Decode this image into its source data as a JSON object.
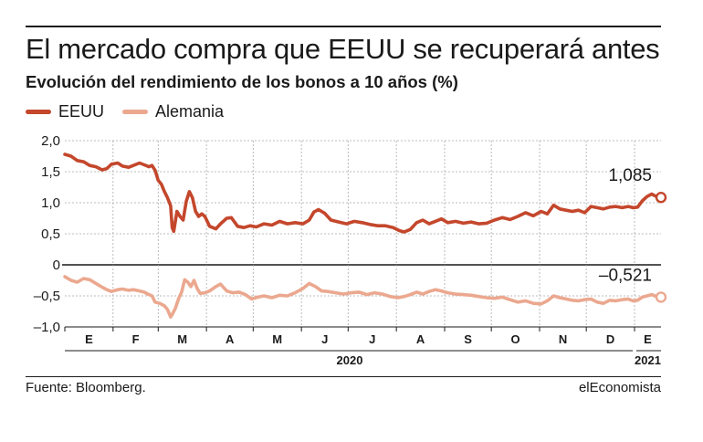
{
  "header": {
    "title": "El mercado compra que EEUU se recuperará antes",
    "subtitle": "Evolución del rendimiento de los bonos a 10 años (%)"
  },
  "colors": {
    "us": "#c4472c",
    "de": "#eba88f",
    "grid": "#a9a9a9",
    "axis": "#1a1a1a"
  },
  "footer": {
    "source": "Fuente: Bloomberg.",
    "brand": "elEconomista"
  },
  "chart_data": {
    "type": "line",
    "title": "Evolución del rendimiento de los bonos a 10 años (%)",
    "ylim": [
      -1.0,
      2.0
    ],
    "y_ticks": [
      2.0,
      1.5,
      1.0,
      0.5,
      0,
      -0.5,
      -1.0
    ],
    "y_tick_labels": [
      "2,0",
      "1,5",
      "1,0",
      "0,5",
      "0",
      "–0,5",
      "–1,0"
    ],
    "x_range": [
      "2020-01-01",
      "2021-01-18"
    ],
    "month_labels": [
      {
        "label": "E",
        "date": "2020-01-01"
      },
      {
        "label": "F",
        "date": "2020-02-01"
      },
      {
        "label": "M",
        "date": "2020-03-01"
      },
      {
        "label": "A",
        "date": "2020-04-01"
      },
      {
        "label": "M",
        "date": "2020-05-01"
      },
      {
        "label": "J",
        "date": "2020-06-01"
      },
      {
        "label": "J",
        "date": "2020-07-01"
      },
      {
        "label": "A",
        "date": "2020-08-01"
      },
      {
        "label": "S",
        "date": "2020-09-01"
      },
      {
        "label": "O",
        "date": "2020-10-01"
      },
      {
        "label": "N",
        "date": "2020-11-01"
      },
      {
        "label": "D",
        "date": "2020-12-01"
      },
      {
        "label": "E",
        "date": "2021-01-01"
      }
    ],
    "year_labels": [
      {
        "label": "2020"
      },
      {
        "label": "2021"
      }
    ],
    "legend": "top-left",
    "grid": true,
    "series": [
      {
        "name": "EEUU",
        "last_label": "1,085",
        "points": [
          [
            "2020-01-01",
            1.78
          ],
          [
            "2020-01-05",
            1.75
          ],
          [
            "2020-01-09",
            1.68
          ],
          [
            "2020-01-13",
            1.66
          ],
          [
            "2020-01-17",
            1.6
          ],
          [
            "2020-01-21",
            1.58
          ],
          [
            "2020-01-25",
            1.53
          ],
          [
            "2020-01-28",
            1.55
          ],
          [
            "2020-01-31",
            1.62
          ],
          [
            "2020-02-04",
            1.64
          ],
          [
            "2020-02-07",
            1.59
          ],
          [
            "2020-02-11",
            1.57
          ],
          [
            "2020-02-14",
            1.6
          ],
          [
            "2020-02-18",
            1.64
          ],
          [
            "2020-02-21",
            1.61
          ],
          [
            "2020-02-24",
            1.58
          ],
          [
            "2020-02-26",
            1.6
          ],
          [
            "2020-02-28",
            1.52
          ],
          [
            "2020-03-01",
            1.36
          ],
          [
            "2020-03-03",
            1.3
          ],
          [
            "2020-03-05",
            1.18
          ],
          [
            "2020-03-07",
            1.08
          ],
          [
            "2020-03-09",
            0.95
          ],
          [
            "2020-03-10",
            0.6
          ],
          [
            "2020-03-11",
            0.54
          ],
          [
            "2020-03-13",
            0.86
          ],
          [
            "2020-03-15",
            0.78
          ],
          [
            "2020-03-17",
            0.72
          ],
          [
            "2020-03-19",
            1.02
          ],
          [
            "2020-03-21",
            1.18
          ],
          [
            "2020-03-23",
            1.08
          ],
          [
            "2020-03-25",
            0.86
          ],
          [
            "2020-03-27",
            0.78
          ],
          [
            "2020-03-29",
            0.82
          ],
          [
            "2020-03-31",
            0.78
          ],
          [
            "2020-04-03",
            0.62
          ],
          [
            "2020-04-07",
            0.58
          ],
          [
            "2020-04-10",
            0.66
          ],
          [
            "2020-04-14",
            0.75
          ],
          [
            "2020-04-17",
            0.76
          ],
          [
            "2020-04-21",
            0.62
          ],
          [
            "2020-04-25",
            0.6
          ],
          [
            "2020-04-29",
            0.63
          ],
          [
            "2020-05-03",
            0.61
          ],
          [
            "2020-05-08",
            0.66
          ],
          [
            "2020-05-13",
            0.64
          ],
          [
            "2020-05-18",
            0.7
          ],
          [
            "2020-05-23",
            0.66
          ],
          [
            "2020-05-28",
            0.68
          ],
          [
            "2020-06-02",
            0.66
          ],
          [
            "2020-06-06",
            0.72
          ],
          [
            "2020-06-09",
            0.85
          ],
          [
            "2020-06-12",
            0.89
          ],
          [
            "2020-06-16",
            0.83
          ],
          [
            "2020-06-20",
            0.72
          ],
          [
            "2020-06-25",
            0.69
          ],
          [
            "2020-06-30",
            0.66
          ],
          [
            "2020-07-05",
            0.7
          ],
          [
            "2020-07-10",
            0.68
          ],
          [
            "2020-07-15",
            0.65
          ],
          [
            "2020-07-20",
            0.63
          ],
          [
            "2020-07-25",
            0.63
          ],
          [
            "2020-07-30",
            0.6
          ],
          [
            "2020-08-03",
            0.55
          ],
          [
            "2020-08-06",
            0.53
          ],
          [
            "2020-08-10",
            0.57
          ],
          [
            "2020-08-14",
            0.68
          ],
          [
            "2020-08-18",
            0.72
          ],
          [
            "2020-08-22",
            0.66
          ],
          [
            "2020-08-26",
            0.7
          ],
          [
            "2020-08-30",
            0.74
          ],
          [
            "2020-09-03",
            0.68
          ],
          [
            "2020-09-08",
            0.7
          ],
          [
            "2020-09-13",
            0.67
          ],
          [
            "2020-09-18",
            0.69
          ],
          [
            "2020-09-23",
            0.66
          ],
          [
            "2020-09-28",
            0.67
          ],
          [
            "2020-10-03",
            0.72
          ],
          [
            "2020-10-08",
            0.76
          ],
          [
            "2020-10-13",
            0.73
          ],
          [
            "2020-10-18",
            0.78
          ],
          [
            "2020-10-23",
            0.84
          ],
          [
            "2020-10-28",
            0.79
          ],
          [
            "2020-11-02",
            0.86
          ],
          [
            "2020-11-06",
            0.82
          ],
          [
            "2020-11-10",
            0.96
          ],
          [
            "2020-11-14",
            0.9
          ],
          [
            "2020-11-18",
            0.88
          ],
          [
            "2020-11-22",
            0.86
          ],
          [
            "2020-11-26",
            0.88
          ],
          [
            "2020-11-30",
            0.84
          ],
          [
            "2020-12-04",
            0.94
          ],
          [
            "2020-12-08",
            0.92
          ],
          [
            "2020-12-12",
            0.9
          ],
          [
            "2020-12-16",
            0.93
          ],
          [
            "2020-12-20",
            0.94
          ],
          [
            "2020-12-24",
            0.92
          ],
          [
            "2020-12-28",
            0.94
          ],
          [
            "2020-12-31",
            0.92
          ],
          [
            "2021-01-03",
            0.93
          ],
          [
            "2021-01-06",
            1.03
          ],
          [
            "2021-01-09",
            1.1
          ],
          [
            "2021-01-12",
            1.14
          ],
          [
            "2021-01-15",
            1.1
          ],
          [
            "2021-01-18",
            1.085
          ]
        ]
      },
      {
        "name": "Alemania",
        "last_label": "–0,521",
        "points": [
          [
            "2020-01-01",
            -0.19
          ],
          [
            "2020-01-05",
            -0.25
          ],
          [
            "2020-01-09",
            -0.28
          ],
          [
            "2020-01-13",
            -0.22
          ],
          [
            "2020-01-17",
            -0.24
          ],
          [
            "2020-01-21",
            -0.3
          ],
          [
            "2020-01-25",
            -0.36
          ],
          [
            "2020-01-28",
            -0.4
          ],
          [
            "2020-01-31",
            -0.43
          ],
          [
            "2020-02-04",
            -0.4
          ],
          [
            "2020-02-07",
            -0.39
          ],
          [
            "2020-02-11",
            -0.41
          ],
          [
            "2020-02-14",
            -0.4
          ],
          [
            "2020-02-18",
            -0.42
          ],
          [
            "2020-02-21",
            -0.44
          ],
          [
            "2020-02-24",
            -0.48
          ],
          [
            "2020-02-26",
            -0.5
          ],
          [
            "2020-02-28",
            -0.6
          ],
          [
            "2020-03-02",
            -0.62
          ],
          [
            "2020-03-05",
            -0.66
          ],
          [
            "2020-03-07",
            -0.72
          ],
          [
            "2020-03-09",
            -0.84
          ],
          [
            "2020-03-10",
            -0.8
          ],
          [
            "2020-03-12",
            -0.7
          ],
          [
            "2020-03-14",
            -0.55
          ],
          [
            "2020-03-16",
            -0.44
          ],
          [
            "2020-03-18",
            -0.24
          ],
          [
            "2020-03-20",
            -0.28
          ],
          [
            "2020-03-22",
            -0.35
          ],
          [
            "2020-03-24",
            -0.25
          ],
          [
            "2020-03-26",
            -0.38
          ],
          [
            "2020-03-28",
            -0.46
          ],
          [
            "2020-03-31",
            -0.45
          ],
          [
            "2020-04-03",
            -0.42
          ],
          [
            "2020-04-07",
            -0.35
          ],
          [
            "2020-04-10",
            -0.31
          ],
          [
            "2020-04-14",
            -0.42
          ],
          [
            "2020-04-18",
            -0.45
          ],
          [
            "2020-04-22",
            -0.44
          ],
          [
            "2020-04-26",
            -0.48
          ],
          [
            "2020-04-30",
            -0.55
          ],
          [
            "2020-05-04",
            -0.52
          ],
          [
            "2020-05-08",
            -0.5
          ],
          [
            "2020-05-13",
            -0.53
          ],
          [
            "2020-05-18",
            -0.49
          ],
          [
            "2020-05-23",
            -0.5
          ],
          [
            "2020-05-28",
            -0.45
          ],
          [
            "2020-06-02",
            -0.38
          ],
          [
            "2020-06-06",
            -0.3
          ],
          [
            "2020-06-10",
            -0.35
          ],
          [
            "2020-06-14",
            -0.42
          ],
          [
            "2020-06-18",
            -0.43
          ],
          [
            "2020-06-23",
            -0.45
          ],
          [
            "2020-06-28",
            -0.47
          ],
          [
            "2020-07-03",
            -0.45
          ],
          [
            "2020-07-08",
            -0.44
          ],
          [
            "2020-07-13",
            -0.48
          ],
          [
            "2020-07-18",
            -0.45
          ],
          [
            "2020-07-23",
            -0.47
          ],
          [
            "2020-07-28",
            -0.51
          ],
          [
            "2020-08-02",
            -0.53
          ],
          [
            "2020-08-06",
            -0.51
          ],
          [
            "2020-08-10",
            -0.48
          ],
          [
            "2020-08-14",
            -0.44
          ],
          [
            "2020-08-18",
            -0.47
          ],
          [
            "2020-08-22",
            -0.43
          ],
          [
            "2020-08-26",
            -0.4
          ],
          [
            "2020-08-30",
            -0.42
          ],
          [
            "2020-09-03",
            -0.45
          ],
          [
            "2020-09-08",
            -0.47
          ],
          [
            "2020-09-13",
            -0.48
          ],
          [
            "2020-09-18",
            -0.49
          ],
          [
            "2020-09-23",
            -0.51
          ],
          [
            "2020-09-28",
            -0.53
          ],
          [
            "2020-10-03",
            -0.54
          ],
          [
            "2020-10-08",
            -0.52
          ],
          [
            "2020-10-13",
            -0.56
          ],
          [
            "2020-10-18",
            -0.6
          ],
          [
            "2020-10-23",
            -0.58
          ],
          [
            "2020-10-28",
            -0.62
          ],
          [
            "2020-11-02",
            -0.63
          ],
          [
            "2020-11-06",
            -0.58
          ],
          [
            "2020-11-10",
            -0.5
          ],
          [
            "2020-11-14",
            -0.53
          ],
          [
            "2020-11-18",
            -0.55
          ],
          [
            "2020-11-22",
            -0.57
          ],
          [
            "2020-11-26",
            -0.58
          ],
          [
            "2020-11-30",
            -0.56
          ],
          [
            "2020-12-04",
            -0.55
          ],
          [
            "2020-12-08",
            -0.6
          ],
          [
            "2020-12-12",
            -0.62
          ],
          [
            "2020-12-16",
            -0.57
          ],
          [
            "2020-12-20",
            -0.58
          ],
          [
            "2020-12-24",
            -0.56
          ],
          [
            "2020-12-28",
            -0.55
          ],
          [
            "2020-12-31",
            -0.58
          ],
          [
            "2021-01-03",
            -0.57
          ],
          [
            "2021-01-06",
            -0.52
          ],
          [
            "2021-01-09",
            -0.5
          ],
          [
            "2021-01-12",
            -0.48
          ],
          [
            "2021-01-15",
            -0.51
          ],
          [
            "2021-01-18",
            -0.521
          ]
        ]
      }
    ]
  }
}
